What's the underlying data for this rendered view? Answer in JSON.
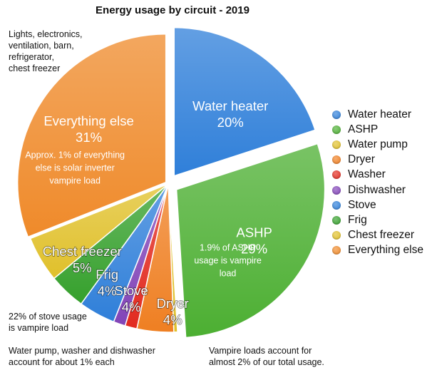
{
  "chart_data": {
    "type": "pie",
    "title": "Energy usage by circuit - 2019",
    "slices": [
      {
        "label": "Water heater",
        "value": 20,
        "pct_label": "20%",
        "color": "#2f7fd9"
      },
      {
        "label": "ASHP",
        "value": 29,
        "pct_label": "29%",
        "color": "#4caf32"
      },
      {
        "label": "Water pump",
        "value": 0.4,
        "pct_label": "",
        "color": "#e0c02a"
      },
      {
        "label": "Dryer",
        "value": 4,
        "pct_label": "4%",
        "color": "#ef7f22"
      },
      {
        "label": "Washer",
        "value": 1.3,
        "pct_label": "",
        "color": "#e22a1f"
      },
      {
        "label": "Dishwasher",
        "value": 1.3,
        "pct_label": "",
        "color": "#8244b8"
      },
      {
        "label": "Stove",
        "value": 4,
        "pct_label": "4%",
        "color": "#2f7fd9"
      },
      {
        "label": "Frig",
        "value": 4,
        "pct_label": "4%",
        "color": "#35a02c"
      },
      {
        "label": "Chest freezer",
        "value": 5,
        "pct_label": "5%",
        "color": "#e0c02a"
      },
      {
        "label": "Everything else",
        "value": 31,
        "pct_label": "31%",
        "color": "#ef8a2a"
      }
    ],
    "legend_position": "right"
  },
  "annotations": {
    "everything_else_note": "Approx. 1% of everything\nelse is solar inverter\nvampire load",
    "ashp_note": "1.9% of ASHP\nusage is vampire\nload",
    "top_left_note": "Lights, electronics,\nventilation, barn,\nrefrigerator,\nchest freezer",
    "stove_note": "22% of stove usage\nis vampire load",
    "bottom_left_note": "Water pump, washer and dishwasher\naccount for about 1% each",
    "bottom_right_note": "Vampire loads account for\nalmost 2% of our total usage."
  }
}
